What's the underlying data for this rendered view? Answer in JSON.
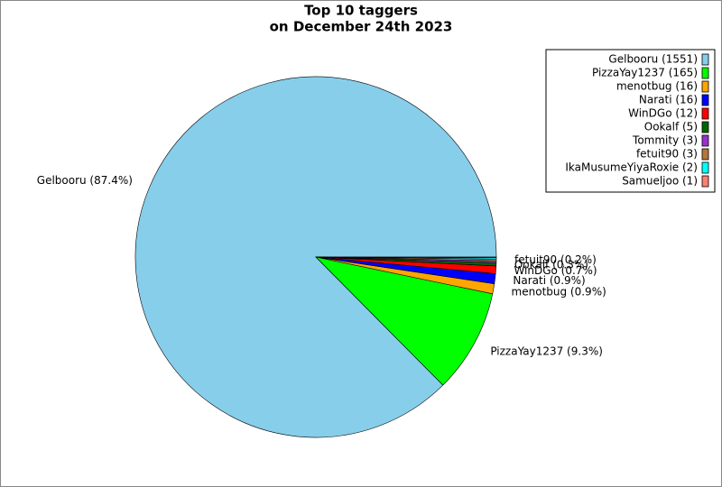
{
  "chart_data": {
    "type": "pie",
    "title": "Top 10 taggers",
    "subtitle": "on December 24th 2023",
    "categories": [
      "Gelbooru",
      "PizzaYay1237",
      "menotbug",
      "Narati",
      "WinDGo",
      "Ookalf",
      "Tommity",
      "fetuit90",
      "IkaMusumeYiyaRoxie",
      "Samueljoo"
    ],
    "values": [
      1551,
      165,
      16,
      16,
      12,
      5,
      3,
      3,
      2,
      1
    ],
    "colors": [
      "#87ceeb",
      "#00ff00",
      "#ffa500",
      "#0000ff",
      "#ff0000",
      "#006400",
      "#9932cc",
      "#b5763a",
      "#00ffff",
      "#fa8072"
    ],
    "legend_labels": [
      "Gelbooru (1551)",
      "PizzaYay1237 (165)",
      "menotbug (16)",
      "Narati (16)",
      "WinDGo (12)",
      "Ookalf (5)",
      "Tommity (3)",
      "fetuit90 (3)",
      "IkaMusumeYiyaRoxie (2)",
      "Samueljoo (1)"
    ],
    "slice_labels": [
      "Gelbooru (87.4%)",
      "PizzaYay1237 (9.3%)",
      "menotbug (0.9%)",
      "Narati (0.9%)",
      "WinDGo (0.7%)",
      "Ookalf (0.3%)",
      null,
      "fetuit90 (0.2%)",
      null,
      null
    ],
    "legend": "upper right"
  }
}
